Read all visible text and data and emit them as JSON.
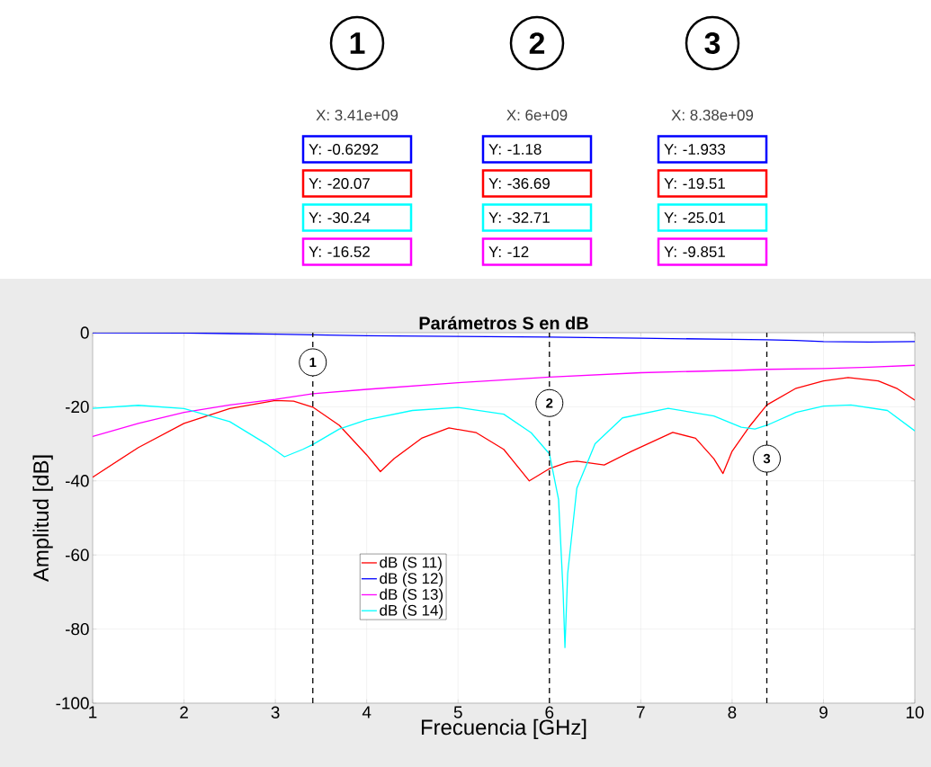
{
  "chart_data": {
    "type": "line",
    "title": "Parámetros S en dB",
    "xlabel": "Frecuencia [GHz]",
    "ylabel": "Amplitud [dB]",
    "xlim": [
      1,
      10
    ],
    "ylim": [
      -100,
      0
    ],
    "xticks": [
      1,
      2,
      3,
      4,
      5,
      6,
      7,
      8,
      9,
      10
    ],
    "yticks": [
      -100,
      -80,
      -60,
      -40,
      -20,
      0
    ],
    "grid": true,
    "legend": "center",
    "line_style": "solid",
    "series": [
      {
        "name": "dB (S 11)",
        "color": "#ff0000",
        "x": [
          1,
          1.5,
          2,
          2.5,
          3,
          3.2,
          3.41,
          3.7,
          4.0,
          4.15,
          4.3,
          4.6,
          4.9,
          5.2,
          5.5,
          5.78,
          6.0,
          6.2,
          6.3,
          6.6,
          6.9,
          7.35,
          7.6,
          7.8,
          7.9,
          8.0,
          8.2,
          8.38,
          8.7,
          9.0,
          9.27,
          9.6,
          9.8,
          10
        ],
        "values": [
          -39,
          -31,
          -24.5,
          -20.5,
          -18.3,
          -18.5,
          -20.1,
          -25,
          -33,
          -37.5,
          -34,
          -28.5,
          -25.7,
          -27,
          -31.5,
          -40,
          -36.7,
          -35,
          -34.7,
          -35.7,
          -32,
          -26.9,
          -28.5,
          -34,
          -38,
          -32,
          -25,
          -19.5,
          -15,
          -13,
          -12.1,
          -13,
          -15,
          -18.2
        ]
      },
      {
        "name": "dB (S 12)",
        "color": "#0000ff",
        "x": [
          1,
          2,
          3,
          3.41,
          4,
          5,
          6,
          7,
          8,
          8.38,
          8.7,
          9.0,
          9.5,
          10
        ],
        "values": [
          0,
          -0.1,
          -0.4,
          -0.6,
          -0.8,
          -1.0,
          -1.2,
          -1.5,
          -1.8,
          -1.9,
          -2.1,
          -2.4,
          -2.5,
          -2.4
        ]
      },
      {
        "name": "dB (S 13)",
        "color": "#ff00ff",
        "x": [
          1,
          1.5,
          2,
          2.5,
          3,
          3.41,
          4,
          5,
          6,
          7,
          8,
          8.38,
          9,
          9.5,
          10
        ],
        "values": [
          -28,
          -24.5,
          -21.5,
          -19.5,
          -18,
          -16.5,
          -15.3,
          -13.5,
          -12,
          -10.8,
          -10.2,
          -9.9,
          -9.7,
          -9.3,
          -8.8
        ]
      },
      {
        "name": "dB (S 14)",
        "color": "#00ffff",
        "x": [
          1,
          1.5,
          2,
          2.5,
          2.9,
          3.1,
          3.3,
          3.41,
          3.7,
          4.0,
          4.5,
          5.0,
          5.5,
          5.8,
          6.0,
          6.1,
          6.15,
          6.17,
          6.2,
          6.3,
          6.5,
          6.8,
          7.3,
          7.8,
          8.1,
          8.25,
          8.38,
          8.7,
          9.0,
          9.3,
          9.7,
          10
        ],
        "values": [
          -20.4,
          -19.6,
          -20.5,
          -24,
          -30,
          -33.5,
          -31.5,
          -30.2,
          -26,
          -23.5,
          -21,
          -20.2,
          -22,
          -27,
          -32.7,
          -45,
          -70,
          -85,
          -65,
          -42,
          -30,
          -23,
          -20.4,
          -22.5,
          -25.5,
          -26,
          -25,
          -21.5,
          -19.8,
          -19.5,
          -21,
          -26.5
        ]
      }
    ],
    "ref_lines": [
      {
        "axis": "x",
        "value": 3.41,
        "color": "#000000",
        "line_style": "dashed"
      },
      {
        "axis": "x",
        "value": 6,
        "color": "#000000",
        "line_style": "dashed"
      },
      {
        "axis": "x",
        "value": 8.38,
        "color": "#000000",
        "line_style": "dashed"
      }
    ],
    "annotations": [
      "1",
      "X: 3.41e+09",
      "Y: -0.6292",
      "Y: -20.07",
      "Y: -30.24",
      "Y: -16.52",
      "2",
      "X: 6e+09",
      "Y: -1.18",
      "Y: -36.69",
      "Y: -32.71",
      "Y: -12",
      "3",
      "X: 8.38e+09",
      "Y: -1.933",
      "Y: -19.51",
      "Y: -25.01",
      "Y: -9.851",
      {
        "text": "1",
        "x": 3.41,
        "y": -8
      },
      {
        "text": "2",
        "x": 6,
        "y": -19
      },
      {
        "text": "3",
        "x": 8.38,
        "y": -34
      }
    ]
  }
}
